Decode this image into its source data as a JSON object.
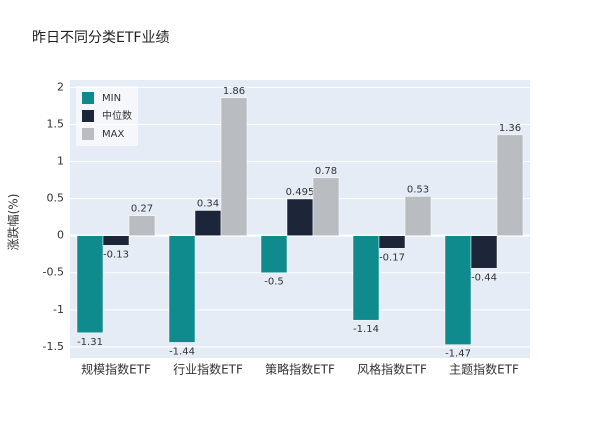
{
  "chart_data": {
    "type": "bar",
    "title": "昨日不同分类ETF业绩",
    "y_label": "涨跌幅(%)",
    "categories": [
      "规模指数ETF",
      "行业指数ETF",
      "策略指数ETF",
      "风格指数ETF",
      "主题指数ETF"
    ],
    "series": [
      {
        "name": "MIN",
        "color": "#0f8b8d",
        "values": [
          -1.31,
          -1.44,
          -0.5,
          -1.14,
          -1.47
        ]
      },
      {
        "name": "中位数",
        "color": "#1d2638",
        "values": [
          -0.13,
          0.34,
          0.495,
          -0.17,
          -0.44
        ]
      },
      {
        "name": "MAX",
        "color": "#b9bdc1",
        "values": [
          0.27,
          1.86,
          0.78,
          0.53,
          1.36
        ]
      }
    ],
    "ylim": [
      -1.65,
      2.1
    ],
    "yticks": [
      -1.5,
      -1,
      -0.5,
      0,
      0.5,
      1,
      1.5,
      2
    ],
    "grid": true,
    "legend": "top-left"
  }
}
